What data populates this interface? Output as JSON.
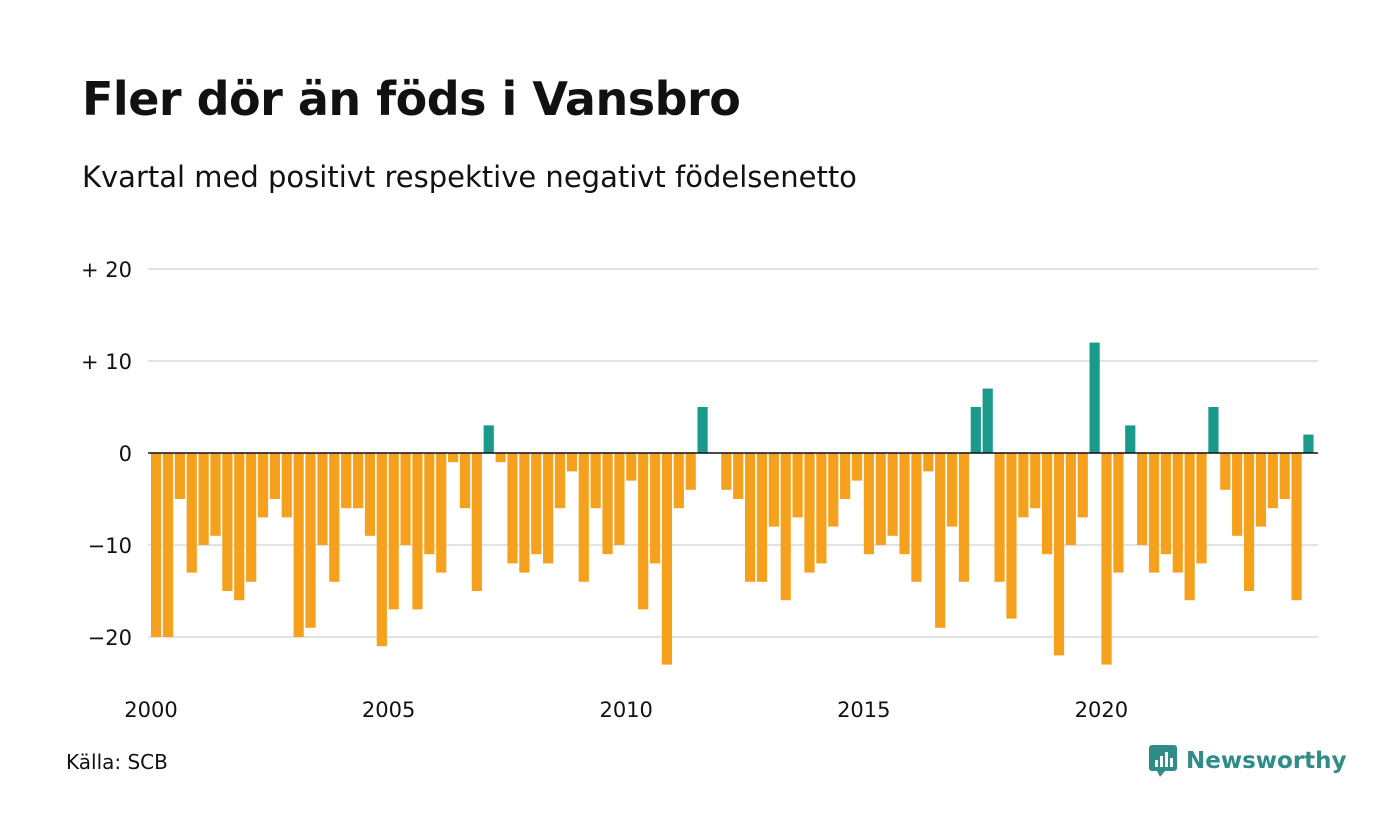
{
  "title": "Fler dör än föds i Vansbro",
  "subtitle": "Kvartal med positivt respektive negativt födelsenetto",
  "source": "Källa: SCB",
  "brand": {
    "name": "Newsworthy",
    "icon": "newsworthy-logo-icon",
    "color": "#2f8c86"
  },
  "chart_data": {
    "type": "bar",
    "title": "Fler dör än föds i Vansbro",
    "subtitle": "Kvartal med positivt respektive negativt födelsenetto",
    "x_start_year": 2000,
    "periods_per_year": 4,
    "xticks": [
      2000,
      2005,
      2010,
      2015,
      2020
    ],
    "xtick_labels": [
      "2000",
      "2005",
      "2010",
      "2015",
      "2020"
    ],
    "yticks": [
      20,
      10,
      0,
      -10,
      -20
    ],
    "ytick_labels": [
      "+ 20",
      "+ 10",
      "0",
      "−10",
      "−20"
    ],
    "ylim": [
      -25,
      20
    ],
    "grid": true,
    "legend": "none",
    "colors": {
      "positive": "#1a9a8a",
      "negative": "#f5a11d",
      "grid": "#e3e3e3",
      "zero_line": "#111111"
    },
    "series": [
      {
        "values": [
          -20,
          -20,
          -5,
          -13,
          -10,
          -9,
          -15,
          -16,
          -14,
          -7,
          -5,
          -7,
          -20,
          -19,
          -10,
          -14,
          -6,
          -6,
          -9,
          -21,
          -17,
          -10,
          -17,
          -11,
          -13,
          -1,
          -6,
          -15,
          3,
          -1,
          -12,
          -13,
          -11,
          -12,
          -6,
          -2,
          -14,
          -6,
          -11,
          -10,
          -3,
          -17,
          -12,
          -23,
          -6,
          -4,
          5,
          0,
          -4,
          -5,
          -14,
          -14,
          -8,
          -16,
          -7,
          -13,
          -12,
          -8,
          -5,
          -3,
          -11,
          -10,
          -9,
          -11,
          -14,
          -2,
          -19,
          -8,
          -14,
          5,
          7,
          -14,
          -18,
          -7,
          -6,
          -11,
          -22,
          -10,
          -7,
          12,
          -23,
          -13,
          3,
          -10,
          -13,
          -11,
          -13,
          -16,
          -12,
          5,
          -4,
          -9,
          -15,
          -8,
          -6,
          -5,
          -16,
          2
        ]
      }
    ]
  }
}
